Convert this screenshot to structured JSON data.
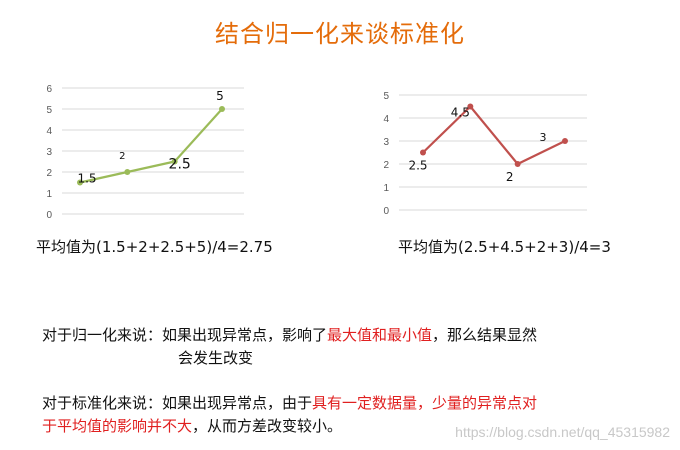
{
  "title": "结合归一化来谈标准化",
  "chart_data": [
    {
      "type": "line",
      "color": "#9bbb59",
      "yticks": [
        "0",
        "1",
        "2",
        "3",
        "4",
        "5",
        "6"
      ],
      "ylim": [
        0,
        6
      ],
      "x": [
        1,
        2,
        3,
        4
      ],
      "values": [
        1.5,
        2,
        2.5,
        5
      ],
      "labels": [
        "1.5",
        "2",
        "2.5",
        "5"
      ]
    },
    {
      "type": "line",
      "color": "#c0504d",
      "yticks": [
        "0",
        "1",
        "2",
        "3",
        "4",
        "5"
      ],
      "ylim": [
        0,
        5
      ],
      "x": [
        1,
        2,
        3,
        4
      ],
      "values": [
        2.5,
        4.5,
        2,
        3
      ],
      "labels": [
        "2.5",
        "4.5",
        "2",
        "3"
      ]
    }
  ],
  "formula_left": "平均值为(1.5+2+2.5+5)/4=2.75",
  "formula_right": "平均值为(2.5+4.5+2+3)/4=3",
  "para1": {
    "lead": "对于归一化来说：如果出现异常点，影响了",
    "red1": "最大值和最小值",
    "tail": "，那么结果显然",
    "line2": "会发生改变"
  },
  "para2": {
    "lead": "对于标准化来说：如果出现异常点，由于",
    "red1": "具有一定数据量，少量的异常点对",
    "red2": "于平均值的影响并不大",
    "tail": "，从而方差改变较小。"
  },
  "watermark": "https://blog.csdn.net/qq_45315982"
}
